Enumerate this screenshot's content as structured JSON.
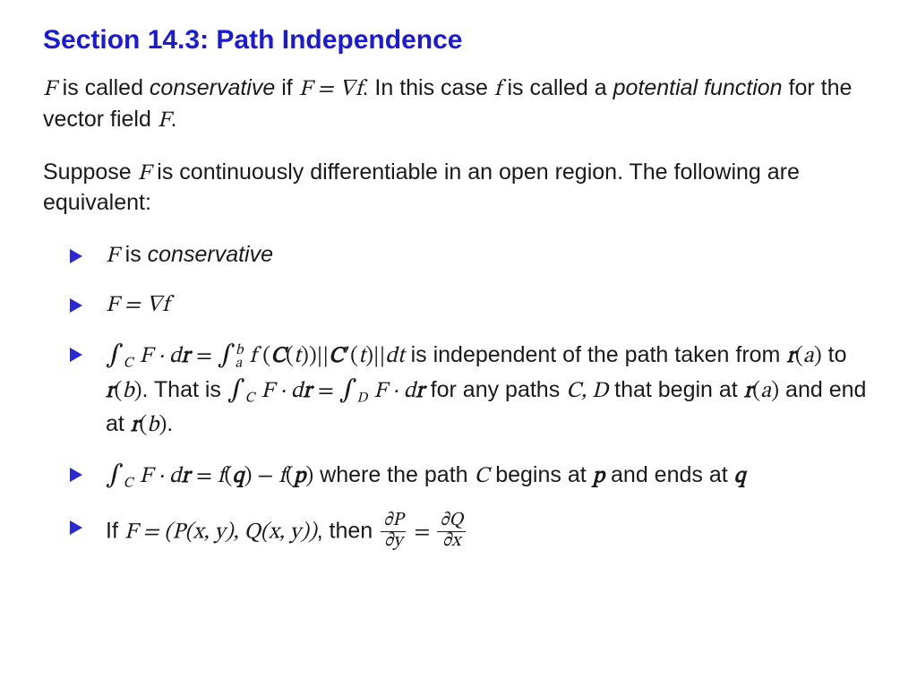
{
  "title": {
    "text": "Section 14.3:  Path Independence",
    "color": "#1b1bd6",
    "fontsize": 30,
    "fontweight": 700
  },
  "body": {
    "fontsize": 25,
    "text_color": "#1a1a1a",
    "bullet_color": "#2a2ad0",
    "background_color": "#ffffff"
  },
  "paragraphs": {
    "p1_a": "F",
    "p1_b": " is called ",
    "p1_c": "conservative",
    "p1_d": " if ",
    "p1_e": "F = ∇f",
    "p1_f": ". In this case ",
    "p1_g": "f",
    "p1_h": " is called a ",
    "p1_i": "potential function",
    "p1_j": " for the vector field ",
    "p1_k": "F",
    "p1_l": ".",
    "p2_a": "Suppose ",
    "p2_b": "F",
    "p2_c": " is continuously differentiable in an open region. The following are equivalent:"
  },
  "bullets": {
    "b1_a": "F",
    "b1_b": " is ",
    "b1_c": "conservative",
    "b2": "F = ∇f",
    "b3_tail": " is independent of the path taken from ",
    "b3_ra": "r",
    "b3_a": "(a)",
    "b3_to": " to ",
    "b3_rb": "r",
    "b3_b": "(b)",
    "b3_thatis": ". That is ",
    "b3_forany": " for any paths ",
    "b3_cd": "C, D",
    "b3_begin": " that begin at ",
    "b3_end": " and end at ",
    "b3_dot": ".",
    "b4_where": " where the path ",
    "b4_C": "C",
    "b4_begins": " begins at ",
    "b4_p": "p",
    "b4_and": " and ends at ",
    "b4_q": "q",
    "b5_if": "If ",
    "b5_F": "F = (P(x, y), Q(x, y))",
    "b5_then": ", then "
  }
}
